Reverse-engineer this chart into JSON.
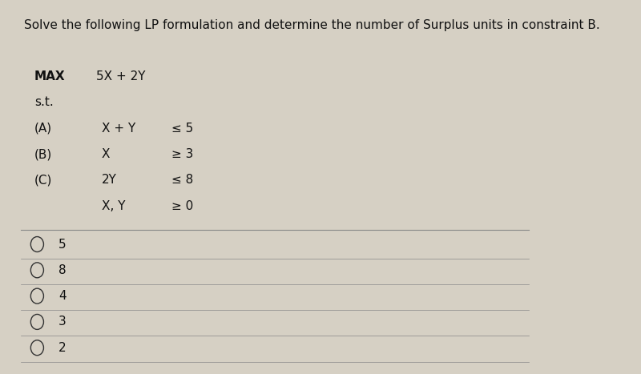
{
  "title": "Solve the following LP formulation and determine the number of Surplus units in constraint B.",
  "title_fontsize": 11,
  "background_color": "#d6d0c4",
  "panel_color": "#cdc7bb",
  "max_label": "MAX",
  "objective": "5X + 2Y",
  "st_label": "s.t.",
  "constraints": [
    {
      "label": "(A)",
      "expr": "X + Y",
      "rel": "≤ 5"
    },
    {
      "label": "(B)",
      "expr": "X",
      "rel": "≥ 3"
    },
    {
      "label": "(C)",
      "expr": "2Y",
      "rel": "≤ 8"
    },
    {
      "label": "",
      "expr": "X, Y",
      "rel": "≥ 0"
    }
  ],
  "choices": [
    "5",
    "8",
    "4",
    "3",
    "2"
  ],
  "text_color": "#111111",
  "line_color": "#888888",
  "circle_color": "#333333"
}
